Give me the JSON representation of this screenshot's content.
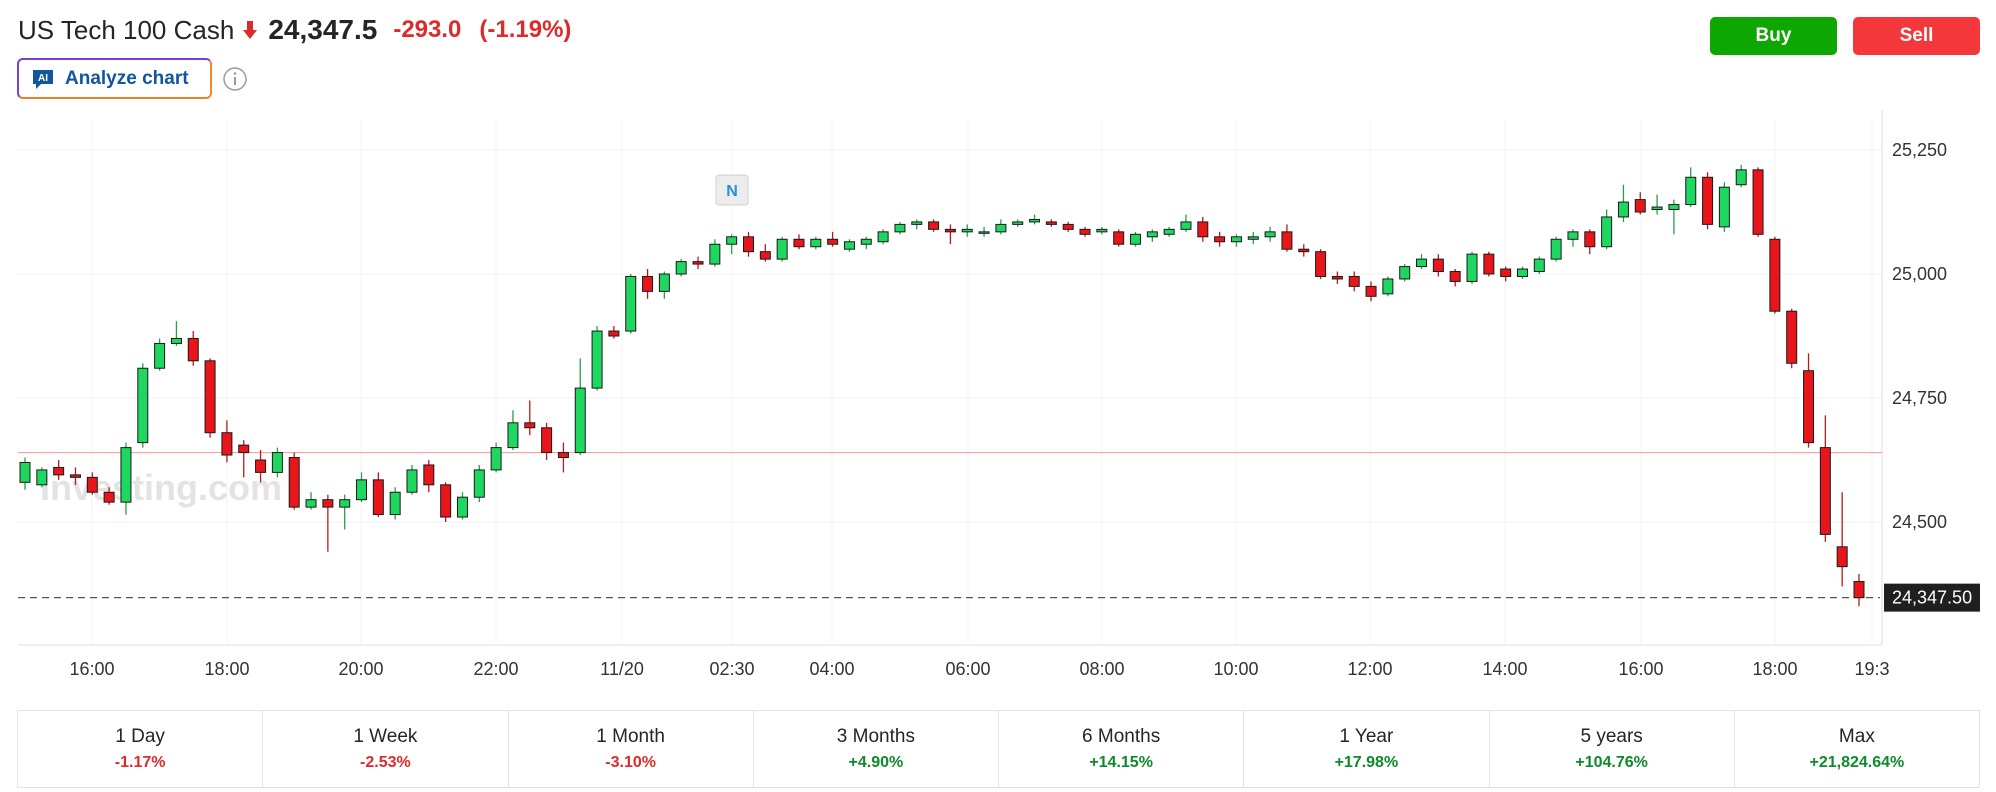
{
  "header": {
    "instrument": "US Tech 100 Cash",
    "price": "24,347.5",
    "change": "-293.0",
    "change_pct": "(-1.19%)",
    "direction_icon": "arrow-down-icon",
    "down_color": "#dd2a2a"
  },
  "actions": {
    "buy_label": "Buy",
    "sell_label": "Sell",
    "buy_color": "#0ea600",
    "sell_color": "#f4373a"
  },
  "analyze": {
    "badge": "AI",
    "label": "Analyze chart",
    "info_icon": "info-icon"
  },
  "chart_data": {
    "type": "candlestick",
    "title": "",
    "watermark": "Investing.com",
    "y_ticks": [
      25250,
      25000,
      24750,
      24500
    ],
    "ylim": [
      24250,
      25300
    ],
    "x_labels": [
      "16:00",
      "18:00",
      "20:00",
      "22:00",
      "11/20",
      "02:30",
      "04:00",
      "06:00",
      "08:00",
      "10:00",
      "12:00",
      "14:00",
      "16:00",
      "18:00",
      "19:3"
    ],
    "current_price_label": "24,347.50",
    "current_price": 24347.5,
    "reference_price": 24640,
    "news_marker": "N",
    "grid": true,
    "up_color": "#1ed760",
    "down_color": "#e8161b",
    "candles": [
      {
        "o": 24580,
        "h": 24630,
        "l": 24565,
        "c": 24620
      },
      {
        "o": 24575,
        "h": 24610,
        "l": 24570,
        "c": 24605
      },
      {
        "o": 24610,
        "h": 24625,
        "l": 24585,
        "c": 24595
      },
      {
        "o": 24595,
        "h": 24610,
        "l": 24575,
        "c": 24590
      },
      {
        "o": 24590,
        "h": 24600,
        "l": 24555,
        "c": 24560
      },
      {
        "o": 24560,
        "h": 24570,
        "l": 24535,
        "c": 24540
      },
      {
        "o": 24540,
        "h": 24660,
        "l": 24515,
        "c": 24650
      },
      {
        "o": 24660,
        "h": 24820,
        "l": 24650,
        "c": 24810
      },
      {
        "o": 24810,
        "h": 24870,
        "l": 24805,
        "c": 24860
      },
      {
        "o": 24860,
        "h": 24905,
        "l": 24855,
        "c": 24870
      },
      {
        "o": 24870,
        "h": 24885,
        "l": 24815,
        "c": 24825
      },
      {
        "o": 24825,
        "h": 24830,
        "l": 24670,
        "c": 24680
      },
      {
        "o": 24680,
        "h": 24705,
        "l": 24620,
        "c": 24635
      },
      {
        "o": 24655,
        "h": 24665,
        "l": 24590,
        "c": 24640
      },
      {
        "o": 24625,
        "h": 24645,
        "l": 24580,
        "c": 24600
      },
      {
        "o": 24600,
        "h": 24650,
        "l": 24590,
        "c": 24640
      },
      {
        "o": 24630,
        "h": 24640,
        "l": 24525,
        "c": 24530
      },
      {
        "o": 24530,
        "h": 24560,
        "l": 24525,
        "c": 24545
      },
      {
        "o": 24545,
        "h": 24555,
        "l": 24440,
        "c": 24530
      },
      {
        "o": 24530,
        "h": 24555,
        "l": 24485,
        "c": 24545
      },
      {
        "o": 24545,
        "h": 24600,
        "l": 24540,
        "c": 24585
      },
      {
        "o": 24585,
        "h": 24600,
        "l": 24510,
        "c": 24515
      },
      {
        "o": 24515,
        "h": 24570,
        "l": 24505,
        "c": 24560
      },
      {
        "o": 24560,
        "h": 24615,
        "l": 24555,
        "c": 24605
      },
      {
        "o": 24615,
        "h": 24625,
        "l": 24560,
        "c": 24575
      },
      {
        "o": 24575,
        "h": 24580,
        "l": 24500,
        "c": 24510
      },
      {
        "o": 24510,
        "h": 24560,
        "l": 24505,
        "c": 24550
      },
      {
        "o": 24550,
        "h": 24615,
        "l": 24540,
        "c": 24605
      },
      {
        "o": 24605,
        "h": 24660,
        "l": 24600,
        "c": 24650
      },
      {
        "o": 24650,
        "h": 24725,
        "l": 24645,
        "c": 24700
      },
      {
        "o": 24700,
        "h": 24745,
        "l": 24675,
        "c": 24690
      },
      {
        "o": 24690,
        "h": 24700,
        "l": 24625,
        "c": 24640
      },
      {
        "o": 24640,
        "h": 24660,
        "l": 24600,
        "c": 24630
      },
      {
        "o": 24640,
        "h": 24830,
        "l": 24635,
        "c": 24770
      },
      {
        "o": 24770,
        "h": 24895,
        "l": 24765,
        "c": 24885
      },
      {
        "o": 24885,
        "h": 24895,
        "l": 24870,
        "c": 24875
      },
      {
        "o": 24885,
        "h": 25000,
        "l": 24880,
        "c": 24995
      },
      {
        "o": 24995,
        "h": 25010,
        "l": 24950,
        "c": 24965
      },
      {
        "o": 24965,
        "h": 25005,
        "l": 24950,
        "c": 25000
      },
      {
        "o": 25000,
        "h": 25030,
        "l": 24995,
        "c": 25025
      },
      {
        "o": 25025,
        "h": 25035,
        "l": 25010,
        "c": 25020
      },
      {
        "o": 25020,
        "h": 25070,
        "l": 25015,
        "c": 25060
      },
      {
        "o": 25060,
        "h": 25080,
        "l": 25040,
        "c": 25075
      },
      {
        "o": 25075,
        "h": 25085,
        "l": 25035,
        "c": 25045
      },
      {
        "o": 25045,
        "h": 25060,
        "l": 25025,
        "c": 25030
      },
      {
        "o": 25030,
        "h": 25075,
        "l": 25025,
        "c": 25070
      },
      {
        "o": 25070,
        "h": 25080,
        "l": 25050,
        "c": 25055
      },
      {
        "o": 25055,
        "h": 25075,
        "l": 25050,
        "c": 25070
      },
      {
        "o": 25070,
        "h": 25085,
        "l": 25055,
        "c": 25060
      },
      {
        "o": 25050,
        "h": 25070,
        "l": 25045,
        "c": 25065
      },
      {
        "o": 25060,
        "h": 25075,
        "l": 25050,
        "c": 25070
      },
      {
        "o": 25065,
        "h": 25090,
        "l": 25060,
        "c": 25085
      },
      {
        "o": 25085,
        "h": 25105,
        "l": 25080,
        "c": 25100
      },
      {
        "o": 25100,
        "h": 25110,
        "l": 25090,
        "c": 25105
      },
      {
        "o": 25105,
        "h": 25110,
        "l": 25085,
        "c": 25090
      },
      {
        "o": 25090,
        "h": 25100,
        "l": 25060,
        "c": 25085
      },
      {
        "o": 25085,
        "h": 25100,
        "l": 25075,
        "c": 25090
      },
      {
        "o": 25085,
        "h": 25095,
        "l": 25075,
        "c": 25085
      },
      {
        "o": 25085,
        "h": 25110,
        "l": 25080,
        "c": 25100
      },
      {
        "o": 25100,
        "h": 25110,
        "l": 25095,
        "c": 25105
      },
      {
        "o": 25105,
        "h": 25120,
        "l": 25100,
        "c": 25110
      },
      {
        "o": 25105,
        "h": 25110,
        "l": 25095,
        "c": 25100
      },
      {
        "o": 25100,
        "h": 25105,
        "l": 25085,
        "c": 25090
      },
      {
        "o": 25090,
        "h": 25095,
        "l": 25075,
        "c": 25080
      },
      {
        "o": 25085,
        "h": 25095,
        "l": 25080,
        "c": 25090
      },
      {
        "o": 25085,
        "h": 25090,
        "l": 25055,
        "c": 25060
      },
      {
        "o": 25060,
        "h": 25085,
        "l": 25055,
        "c": 25080
      },
      {
        "o": 25075,
        "h": 25090,
        "l": 25065,
        "c": 25085
      },
      {
        "o": 25080,
        "h": 25095,
        "l": 25075,
        "c": 25090
      },
      {
        "o": 25090,
        "h": 25120,
        "l": 25085,
        "c": 25105
      },
      {
        "o": 25105,
        "h": 25115,
        "l": 25065,
        "c": 25075
      },
      {
        "o": 25075,
        "h": 25085,
        "l": 25055,
        "c": 25065
      },
      {
        "o": 25065,
        "h": 25080,
        "l": 25055,
        "c": 25075
      },
      {
        "o": 25070,
        "h": 25085,
        "l": 25060,
        "c": 25075
      },
      {
        "o": 25075,
        "h": 25095,
        "l": 25065,
        "c": 25085
      },
      {
        "o": 25085,
        "h": 25100,
        "l": 25045,
        "c": 25050
      },
      {
        "o": 25050,
        "h": 25060,
        "l": 25035,
        "c": 25045
      },
      {
        "o": 25045,
        "h": 25050,
        "l": 24990,
        "c": 24995
      },
      {
        "o": 24995,
        "h": 25005,
        "l": 24980,
        "c": 24990
      },
      {
        "o": 24995,
        "h": 25005,
        "l": 24965,
        "c": 24975
      },
      {
        "o": 24975,
        "h": 24985,
        "l": 24945,
        "c": 24955
      },
      {
        "o": 24960,
        "h": 24995,
        "l": 24955,
        "c": 24990
      },
      {
        "o": 24990,
        "h": 25020,
        "l": 24985,
        "c": 25015
      },
      {
        "o": 25015,
        "h": 25040,
        "l": 25010,
        "c": 25030
      },
      {
        "o": 25030,
        "h": 25040,
        "l": 24995,
        "c": 25005
      },
      {
        "o": 25005,
        "h": 25010,
        "l": 24975,
        "c": 24985
      },
      {
        "o": 24985,
        "h": 25045,
        "l": 24980,
        "c": 25040
      },
      {
        "o": 25040,
        "h": 25045,
        "l": 24995,
        "c": 25000
      },
      {
        "o": 25010,
        "h": 25015,
        "l": 24985,
        "c": 24995
      },
      {
        "o": 24995,
        "h": 25015,
        "l": 24990,
        "c": 25010
      },
      {
        "o": 25005,
        "h": 25035,
        "l": 25000,
        "c": 25030
      },
      {
        "o": 25030,
        "h": 25075,
        "l": 25025,
        "c": 25070
      },
      {
        "o": 25070,
        "h": 25090,
        "l": 25055,
        "c": 25085
      },
      {
        "o": 25085,
        "h": 25090,
        "l": 25040,
        "c": 25055
      },
      {
        "o": 25055,
        "h": 25130,
        "l": 25050,
        "c": 25115
      },
      {
        "o": 25115,
        "h": 25180,
        "l": 25105,
        "c": 25145
      },
      {
        "o": 25150,
        "h": 25165,
        "l": 25120,
        "c": 25125
      },
      {
        "o": 25130,
        "h": 25160,
        "l": 25120,
        "c": 25135
      },
      {
        "o": 25130,
        "h": 25150,
        "l": 25080,
        "c": 25140
      },
      {
        "o": 25140,
        "h": 25215,
        "l": 25135,
        "c": 25195
      },
      {
        "o": 25195,
        "h": 25205,
        "l": 25090,
        "c": 25100
      },
      {
        "o": 25095,
        "h": 25185,
        "l": 25085,
        "c": 25175
      },
      {
        "o": 25180,
        "h": 25220,
        "l": 25175,
        "c": 25210
      },
      {
        "o": 25210,
        "h": 25215,
        "l": 25075,
        "c": 25080
      },
      {
        "o": 25070,
        "h": 25075,
        "l": 24920,
        "c": 24925
      },
      {
        "o": 24925,
        "h": 24930,
        "l": 24810,
        "c": 24820
      },
      {
        "o": 24805,
        "h": 24840,
        "l": 24650,
        "c": 24660
      },
      {
        "o": 24650,
        "h": 24715,
        "l": 24460,
        "c": 24475
      },
      {
        "o": 24450,
        "h": 24560,
        "l": 24370,
        "c": 24410
      },
      {
        "o": 24380,
        "h": 24395,
        "l": 24330,
        "c": 24347.5
      }
    ]
  },
  "periods": [
    {
      "label": "1 Day",
      "change": "-1.17%",
      "dir": "neg"
    },
    {
      "label": "1 Week",
      "change": "-2.53%",
      "dir": "neg"
    },
    {
      "label": "1 Month",
      "change": "-3.10%",
      "dir": "neg"
    },
    {
      "label": "3 Months",
      "change": "+4.90%",
      "dir": "pos"
    },
    {
      "label": "6 Months",
      "change": "+14.15%",
      "dir": "pos"
    },
    {
      "label": "1 Year",
      "change": "+17.98%",
      "dir": "pos"
    },
    {
      "label": "5 years",
      "change": "+104.76%",
      "dir": "pos"
    },
    {
      "label": "Max",
      "change": "+21,824.64%",
      "dir": "pos"
    }
  ]
}
